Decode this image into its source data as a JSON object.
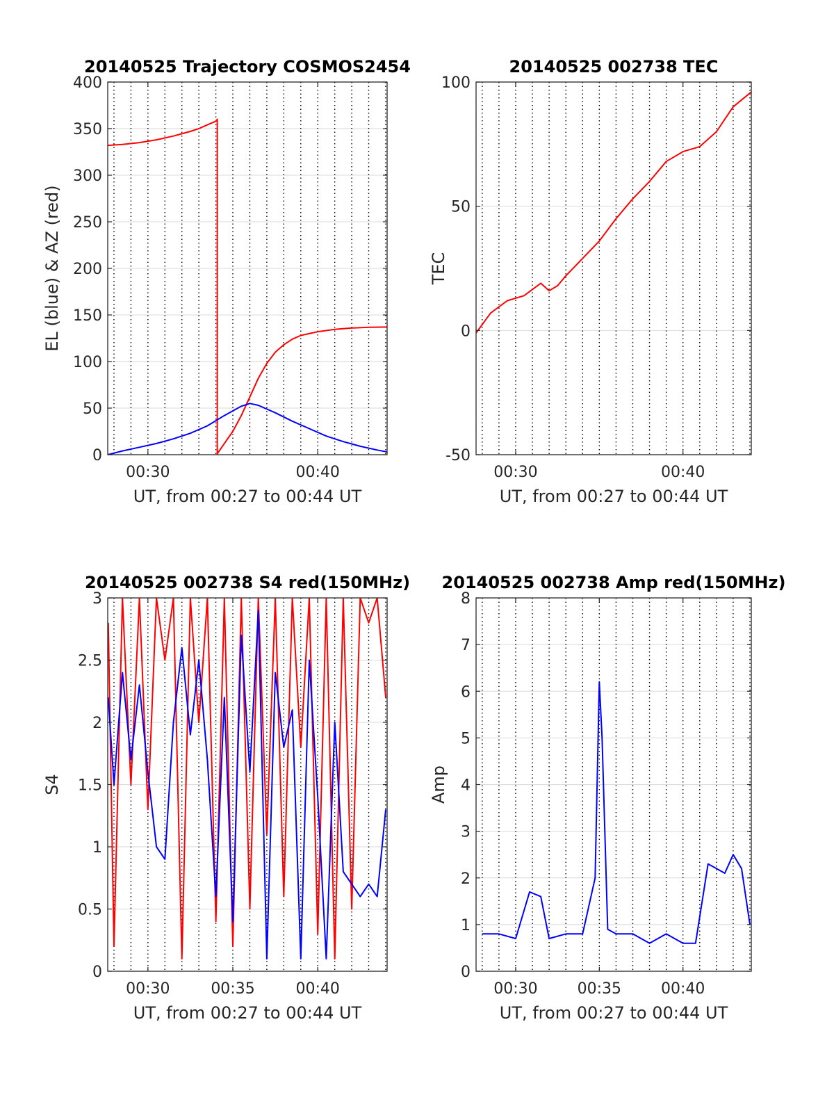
{
  "chart_data": [
    {
      "type": "line",
      "title": "20140525 Trajectory COSMOS2454",
      "xlabel": "UT, from 00:27 to 00:44 UT",
      "ylabel": "EL (blue) & AZ (red)",
      "xlim": [
        "00:27:38",
        "00:44:05"
      ],
      "ylim": [
        0,
        400
      ],
      "x_ticks": [
        "00:30",
        "00:40"
      ],
      "y_ticks": [
        0,
        50,
        100,
        150,
        200,
        250,
        300,
        350,
        400
      ],
      "grid": true,
      "series": [
        {
          "color": "#ff0000",
          "x": [
            "00:27:38",
            "00:28:30",
            "00:29:30",
            "00:30:30",
            "00:31:30",
            "00:32:30",
            "00:33:00",
            "00:33:30",
            "00:34:00",
            "00:34:05",
            "00:34:05",
            "00:34:30",
            "00:35:00",
            "00:35:30",
            "00:36:00",
            "00:36:30",
            "00:37:00",
            "00:37:30",
            "00:38:00",
            "00:38:30",
            "00:39:00",
            "00:40:00",
            "00:41:00",
            "00:42:00",
            "00:43:00",
            "00:44:05"
          ],
          "values": [
            332,
            333,
            335,
            338,
            342,
            347,
            350,
            354,
            358,
            360,
            1,
            12,
            25,
            42,
            62,
            82,
            98,
            110,
            118,
            124,
            128,
            132,
            134.5,
            136,
            136.8,
            137
          ]
        },
        {
          "color": "#0000ff",
          "x": [
            "00:27:38",
            "00:28:30",
            "00:29:30",
            "00:30:30",
            "00:31:30",
            "00:32:30",
            "00:33:30",
            "00:34:30",
            "00:35:30",
            "00:36:00",
            "00:36:30",
            "00:37:30",
            "00:38:30",
            "00:39:30",
            "00:40:30",
            "00:41:30",
            "00:42:30",
            "00:43:30",
            "00:44:05"
          ],
          "values": [
            0,
            4,
            8,
            12,
            17,
            23,
            31,
            42,
            52,
            55,
            53,
            45,
            36,
            28,
            20,
            14,
            9,
            5,
            3
          ]
        }
      ]
    },
    {
      "type": "line",
      "title": "20140525 002738 TEC",
      "xlabel": "UT, from 00:27 to 00:44 UT",
      "ylabel": "TEC",
      "xlim": [
        "00:27:38",
        "00:44:05"
      ],
      "ylim": [
        -50,
        100
      ],
      "x_ticks": [
        "00:30",
        "00:40"
      ],
      "y_ticks": [
        -50,
        0,
        50,
        100
      ],
      "grid": true,
      "series": [
        {
          "color": "#ff0000",
          "x": [
            "00:27:38",
            "00:28:30",
            "00:29:30",
            "00:30:30",
            "00:31:30",
            "00:32:00",
            "00:32:30",
            "00:33:00",
            "00:34:00",
            "00:35:00",
            "00:36:00",
            "00:37:00",
            "00:38:00",
            "00:39:00",
            "00:40:00",
            "00:41:00",
            "00:42:00",
            "00:43:00",
            "00:44:05"
          ],
          "values": [
            -1,
            7,
            12,
            14,
            19,
            16,
            18,
            22,
            29,
            36,
            45,
            53,
            60,
            68,
            72,
            74,
            80,
            90,
            96
          ]
        }
      ]
    },
    {
      "type": "line",
      "title": "20140525 002738 S4 red(150MHz)",
      "xlabel": "UT, from 00:27 to 00:44 UT",
      "ylabel": "S4",
      "xlim": [
        "00:27:38",
        "00:44:05"
      ],
      "ylim": [
        0,
        3
      ],
      "x_ticks": [
        "00:30",
        "00:35",
        "00:40"
      ],
      "y_ticks": [
        0,
        0.5,
        1,
        1.5,
        2,
        2.5,
        3
      ],
      "grid": true,
      "series": [
        {
          "color": "#ff0000",
          "x": [
            "00:27:40",
            "00:28:00",
            "00:28:30",
            "00:29:00",
            "00:29:30",
            "00:30:00",
            "00:30:30",
            "00:31:00",
            "00:31:30",
            "00:32:00",
            "00:32:30",
            "00:33:00",
            "00:33:30",
            "00:34:00",
            "00:34:30",
            "00:35:00",
            "00:35:30",
            "00:36:00",
            "00:36:30",
            "00:37:00",
            "00:37:30",
            "00:38:00",
            "00:38:30",
            "00:39:00",
            "00:39:30",
            "00:40:00",
            "00:40:30",
            "00:41:00",
            "00:41:30",
            "00:42:00",
            "00:42:30",
            "00:43:00",
            "00:43:30",
            "00:44:00"
          ],
          "values": [
            2.8,
            0.2,
            3,
            1.5,
            3,
            1.3,
            3,
            2.5,
            3,
            0.1,
            3,
            2,
            3,
            0.4,
            3,
            0.2,
            3,
            0.5,
            3,
            1.1,
            3,
            0.6,
            3,
            1.8,
            3,
            0.3,
            3,
            0.1,
            3,
            0.5,
            3,
            2.8,
            3,
            2.2
          ]
        },
        {
          "color": "#0000ff",
          "x": [
            "00:27:40",
            "00:28:00",
            "00:28:30",
            "00:29:00",
            "00:29:30",
            "00:30:00",
            "00:30:30",
            "00:31:00",
            "00:31:30",
            "00:32:00",
            "00:32:30",
            "00:33:00",
            "00:33:30",
            "00:34:00",
            "00:34:30",
            "00:35:00",
            "00:35:30",
            "00:36:00",
            "00:36:30",
            "00:37:00",
            "00:37:30",
            "00:38:00",
            "00:38:30",
            "00:39:00",
            "00:39:30",
            "00:40:00",
            "00:40:30",
            "00:41:00",
            "00:41:30",
            "00:42:00",
            "00:42:30",
            "00:43:00",
            "00:43:30",
            "00:44:00"
          ],
          "values": [
            2.2,
            1.5,
            2.4,
            1.7,
            2.3,
            1.6,
            1.0,
            0.9,
            2.0,
            2.6,
            1.9,
            2.5,
            1.7,
            0.6,
            2.2,
            0.4,
            2.7,
            1.6,
            2.9,
            0.1,
            2.4,
            1.8,
            2.1,
            0.1,
            2.5,
            1.4,
            0.1,
            2.0,
            0.8,
            0.7,
            0.6,
            0.7,
            0.6,
            1.3
          ]
        }
      ]
    },
    {
      "type": "line",
      "title": "20140525 002738 Amp red(150MHz)",
      "xlabel": "UT, from 00:27 to 00:44 UT",
      "ylabel": "Amp",
      "xlim": [
        "00:27:38",
        "00:44:05"
      ],
      "ylim": [
        0,
        8
      ],
      "x_ticks": [
        "00:30",
        "00:35",
        "00:40"
      ],
      "y_ticks": [
        0,
        1,
        2,
        3,
        4,
        5,
        6,
        7,
        8
      ],
      "grid": true,
      "series": [
        {
          "color": "#0000ff",
          "x": [
            "00:28:00",
            "00:29:00",
            "00:30:00",
            "00:30:50",
            "00:31:30",
            "00:32:00",
            "00:33:00",
            "00:34:00",
            "00:34:45",
            "00:35:00",
            "00:35:10",
            "00:35:30",
            "00:36:00",
            "00:37:00",
            "00:38:00",
            "00:39:00",
            "00:40:00",
            "00:40:45",
            "00:41:30",
            "00:42:00",
            "00:42:30",
            "00:43:00",
            "00:43:30",
            "00:44:00"
          ],
          "values": [
            0.8,
            0.8,
            0.7,
            1.7,
            1.6,
            0.7,
            0.8,
            0.8,
            2.0,
            6.2,
            5.0,
            0.9,
            0.8,
            0.8,
            0.6,
            0.8,
            0.6,
            0.6,
            2.3,
            2.2,
            2.1,
            2.5,
            2.2,
            1.0
          ]
        }
      ]
    }
  ]
}
